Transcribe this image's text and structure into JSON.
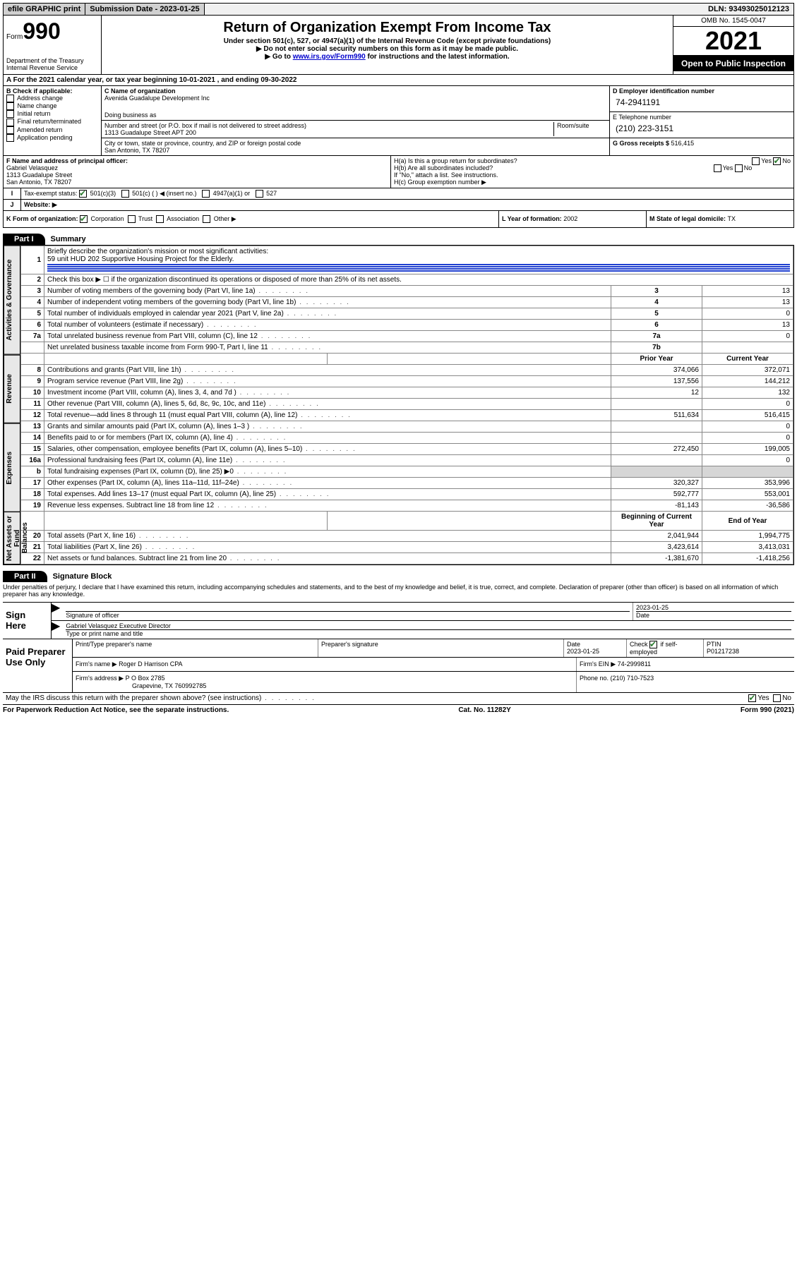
{
  "top_bar": {
    "efile": "efile GRAPHIC print",
    "submission_label": "Submission Date - 2023-01-25",
    "dln": "DLN: 93493025012123"
  },
  "header": {
    "form_word": "Form",
    "form_num": "990",
    "dept": "Department of the Treasury\nInternal Revenue Service",
    "title": "Return of Organization Exempt From Income Tax",
    "subtitle": "Under section 501(c), 527, or 4947(a)(1) of the Internal Revenue Code (except private foundations)",
    "note1": "Do not enter social security numbers on this form as it may be made public.",
    "note2_pre": "Go to ",
    "note2_link": "www.irs.gov/Form990",
    "note2_post": " for instructions and the latest information.",
    "omb": "OMB No. 1545-0047",
    "year": "2021",
    "open": "Open to Public Inspection"
  },
  "line_a": {
    "text_pre": "For the 2021 calendar year, or tax year beginning ",
    "begin": "10-01-2021",
    "mid": " , and ending ",
    "end": "09-30-2022"
  },
  "box_b": {
    "label": "B Check if applicable:",
    "items": [
      "Address change",
      "Name change",
      "Initial return",
      "Final return/terminated",
      "Amended return",
      "Application pending"
    ]
  },
  "box_c": {
    "label": "C Name of organization",
    "name": "Avenida Guadalupe Development Inc",
    "dba_label": "Doing business as",
    "addr_label": "Number and street (or P.O. box if mail is not delivered to street address)",
    "room_label": "Room/suite",
    "addr": "1313 Guadalupe Street APT 200",
    "city_label": "City or town, state or province, country, and ZIP or foreign postal code",
    "city": "San Antonio, TX  78207"
  },
  "box_d": {
    "label": "D Employer identification number",
    "value": "74-2941191",
    "tel_label": "E Telephone number",
    "tel": "(210) 223-3151",
    "gross_label": "G Gross receipts $ ",
    "gross": "516,415"
  },
  "box_f": {
    "label": "F Name and address of principal officer:",
    "name": "Gabriel Velasquez",
    "addr1": "1313 Guadalupe Street",
    "addr2": "San Antonio, TX  78207"
  },
  "box_h": {
    "ha": "H(a)  Is this a group return for subordinates?",
    "hb": "H(b)  Are all subordinates included?",
    "hb_note": "If \"No,\" attach a list. See instructions.",
    "hc": "H(c)  Group exemption number ▶"
  },
  "row_i": {
    "label": "Tax-exempt status:",
    "opt1": "501(c)(3)",
    "opt2": "501(c) (  ) ◀ (insert no.)",
    "opt3": "4947(a)(1) or",
    "opt4": "527"
  },
  "row_j": {
    "label": "Website: ▶"
  },
  "row_k": {
    "label": "K Form of organization:",
    "opts": [
      "Corporation",
      "Trust",
      "Association",
      "Other ▶"
    ]
  },
  "row_l": {
    "label": "L Year of formation: ",
    "val": "2002"
  },
  "row_m": {
    "label": "M State of legal domicile: ",
    "val": "TX"
  },
  "part1": {
    "pill": "Part I",
    "title": "Summary",
    "sections": {
      "gov_label": "Activities & Governance",
      "rev_label": "Revenue",
      "exp_label": "Expenses",
      "net_label": "Net Assets or Fund Balances"
    },
    "line1": {
      "no": "1",
      "text": "Briefly describe the organization's mission or most significant activities:",
      "mission": "59 unit HUD 202 Supportive Housing Project for the Elderly."
    },
    "line2": {
      "no": "2",
      "text": "Check this box ▶ ☐  if the organization discontinued its operations or disposed of more than 25% of its net assets."
    },
    "rows_gov": [
      {
        "no": "3",
        "text": "Number of voting members of the governing body (Part VI, line 1a)",
        "box": "3",
        "val": "13"
      },
      {
        "no": "4",
        "text": "Number of independent voting members of the governing body (Part VI, line 1b)",
        "box": "4",
        "val": "13"
      },
      {
        "no": "5",
        "text": "Total number of individuals employed in calendar year 2021 (Part V, line 2a)",
        "box": "5",
        "val": "0"
      },
      {
        "no": "6",
        "text": "Total number of volunteers (estimate if necessary)",
        "box": "6",
        "val": "13"
      },
      {
        "no": "7a",
        "text": "Total unrelated business revenue from Part VIII, column (C), line 12",
        "box": "7a",
        "val": "0"
      },
      {
        "no": "",
        "text": "Net unrelated business taxable income from Form 990-T, Part I, line 11",
        "box": "7b",
        "val": ""
      }
    ],
    "col_hdr": {
      "prior": "Prior Year",
      "current": "Current Year",
      "begin": "Beginning of Current Year",
      "end": "End of Year"
    },
    "rows_rev": [
      {
        "no": "8",
        "text": "Contributions and grants (Part VIII, line 1h)",
        "prior": "374,066",
        "cur": "372,071"
      },
      {
        "no": "9",
        "text": "Program service revenue (Part VIII, line 2g)",
        "prior": "137,556",
        "cur": "144,212"
      },
      {
        "no": "10",
        "text": "Investment income (Part VIII, column (A), lines 3, 4, and 7d )",
        "prior": "12",
        "cur": "132"
      },
      {
        "no": "11",
        "text": "Other revenue (Part VIII, column (A), lines 5, 6d, 8c, 9c, 10c, and 11e)",
        "prior": "",
        "cur": "0"
      },
      {
        "no": "12",
        "text": "Total revenue—add lines 8 through 11 (must equal Part VIII, column (A), line 12)",
        "prior": "511,634",
        "cur": "516,415"
      }
    ],
    "rows_exp": [
      {
        "no": "13",
        "text": "Grants and similar amounts paid (Part IX, column (A), lines 1–3 )",
        "prior": "",
        "cur": "0"
      },
      {
        "no": "14",
        "text": "Benefits paid to or for members (Part IX, column (A), line 4)",
        "prior": "",
        "cur": "0"
      },
      {
        "no": "15",
        "text": "Salaries, other compensation, employee benefits (Part IX, column (A), lines 5–10)",
        "prior": "272,450",
        "cur": "199,005"
      },
      {
        "no": "16a",
        "text": "Professional fundraising fees (Part IX, column (A), line 11e)",
        "prior": "",
        "cur": "0"
      },
      {
        "no": "b",
        "text": "Total fundraising expenses (Part IX, column (D), line 25) ▶0",
        "prior": "shade",
        "cur": "shade"
      },
      {
        "no": "17",
        "text": "Other expenses (Part IX, column (A), lines 11a–11d, 11f–24e)",
        "prior": "320,327",
        "cur": "353,996"
      },
      {
        "no": "18",
        "text": "Total expenses. Add lines 13–17 (must equal Part IX, column (A), line 25)",
        "prior": "592,777",
        "cur": "553,001"
      },
      {
        "no": "19",
        "text": "Revenue less expenses. Subtract line 18 from line 12",
        "prior": "-81,143",
        "cur": "-36,586"
      }
    ],
    "rows_net": [
      {
        "no": "20",
        "text": "Total assets (Part X, line 16)",
        "prior": "2,041,944",
        "cur": "1,994,775"
      },
      {
        "no": "21",
        "text": "Total liabilities (Part X, line 26)",
        "prior": "3,423,614",
        "cur": "3,413,031"
      },
      {
        "no": "22",
        "text": "Net assets or fund balances. Subtract line 21 from line 20",
        "prior": "-1,381,670",
        "cur": "-1,418,256"
      }
    ]
  },
  "part2": {
    "pill": "Part II",
    "title": "Signature Block",
    "decl": "Under penalties of perjury, I declare that I have examined this return, including accompanying schedules and statements, and to the best of my knowledge and belief, it is true, correct, and complete. Declaration of preparer (other than officer) is based on all information of which preparer has any knowledge."
  },
  "sign": {
    "here_label": "Sign Here",
    "sig_officer": "Signature of officer",
    "date_label": "Date",
    "date_val": "2023-01-25",
    "name_line": "Gabriel Velasquez  Executive Director",
    "name_sub": "Type or print name and title"
  },
  "preparer": {
    "label": "Paid Preparer Use Only",
    "col1": "Print/Type preparer's name",
    "col2": "Preparer's signature",
    "col3_label": "Date",
    "col3_val": "2023-01-25",
    "col4_label": "Check ☑ if self-employed",
    "col5_label": "PTIN",
    "col5_val": "P01217238",
    "firm_name_label": "Firm's name    ▶",
    "firm_name": "Roger D Harrison CPA",
    "firm_ein_label": "Firm's EIN ▶",
    "firm_ein": "74-2999811",
    "firm_addr_label": "Firm's address ▶",
    "firm_addr1": "P O Box 2785",
    "firm_addr2": "Grapevine, TX  760992785",
    "phone_label": "Phone no. ",
    "phone": "(210) 710-7523",
    "discuss": "May the IRS discuss this return with the preparer shown above? (see instructions)"
  },
  "footer": {
    "left": "For Paperwork Reduction Act Notice, see the separate instructions.",
    "mid": "Cat. No. 11282Y",
    "right": "Form 990 (2021)"
  }
}
